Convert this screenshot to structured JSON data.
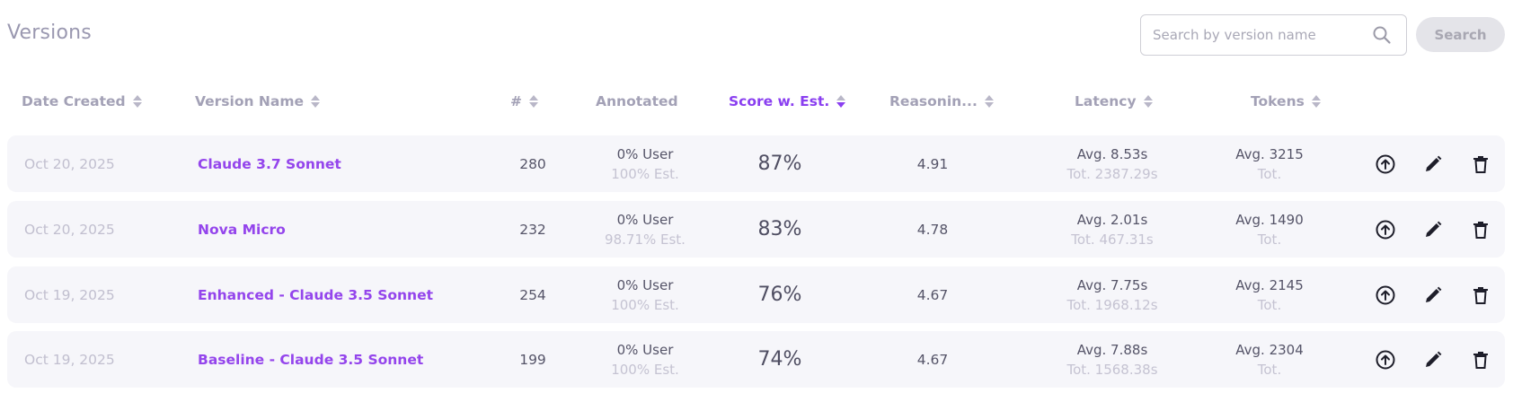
{
  "page": {
    "title": "Versions"
  },
  "search": {
    "placeholder": "Search by version name",
    "value": "",
    "button_label": "Search"
  },
  "columns": [
    {
      "label": "Date Created",
      "active": false
    },
    {
      "label": "Version Name",
      "active": false
    },
    {
      "label": "#",
      "active": false
    },
    {
      "label": "Annotated",
      "active": false
    },
    {
      "label": "Score w. Est.",
      "active": true
    },
    {
      "label": "Reasonin...",
      "active": false
    },
    {
      "label": "Latency",
      "active": false
    },
    {
      "label": "Tokens",
      "active": false
    }
  ],
  "rows": [
    {
      "date": "Oct 20, 2025",
      "name": "Claude 3.7 Sonnet",
      "count": "280",
      "annot_user": "0% User",
      "annot_est": "100% Est.",
      "score": "87%",
      "reasoning": "4.91",
      "latency_avg": "Avg. 8.53s",
      "latency_tot": "Tot. 2387.29s",
      "tokens_avg": "Avg. 3215",
      "tokens_tot": "Tot."
    },
    {
      "date": "Oct 20, 2025",
      "name": "Nova Micro",
      "count": "232",
      "annot_user": "0% User",
      "annot_est": "98.71% Est.",
      "score": "83%",
      "reasoning": "4.78",
      "latency_avg": "Avg. 2.01s",
      "latency_tot": "Tot. 467.31s",
      "tokens_avg": "Avg. 1490",
      "tokens_tot": "Tot."
    },
    {
      "date": "Oct 19, 2025",
      "name": "Enhanced - Claude 3.5 Sonnet",
      "count": "254",
      "annot_user": "0% User",
      "annot_est": "100% Est.",
      "score": "76%",
      "reasoning": "4.67",
      "latency_avg": "Avg. 7.75s",
      "latency_tot": "Tot. 1968.12s",
      "tokens_avg": "Avg. 2145",
      "tokens_tot": "Tot."
    },
    {
      "date": "Oct 19, 2025",
      "name": "Baseline - Claude 3.5 Sonnet",
      "count": "199",
      "annot_user": "0% User",
      "annot_est": "100% Est.",
      "score": "74%",
      "reasoning": "4.67",
      "latency_avg": "Avg. 7.88s",
      "latency_tot": "Tot. 1568.38s",
      "tokens_avg": "Avg. 2304",
      "tokens_tot": "Tot."
    }
  ],
  "icons": {
    "row_actions": [
      "upload-circle-icon",
      "pencil-icon",
      "trash-icon"
    ],
    "search": "search-icon"
  },
  "colors": {
    "accent": "#9445ec",
    "active_header": "#8a3ff0",
    "row_bg": "#f6f6fa",
    "muted": "#c1bfcf"
  }
}
